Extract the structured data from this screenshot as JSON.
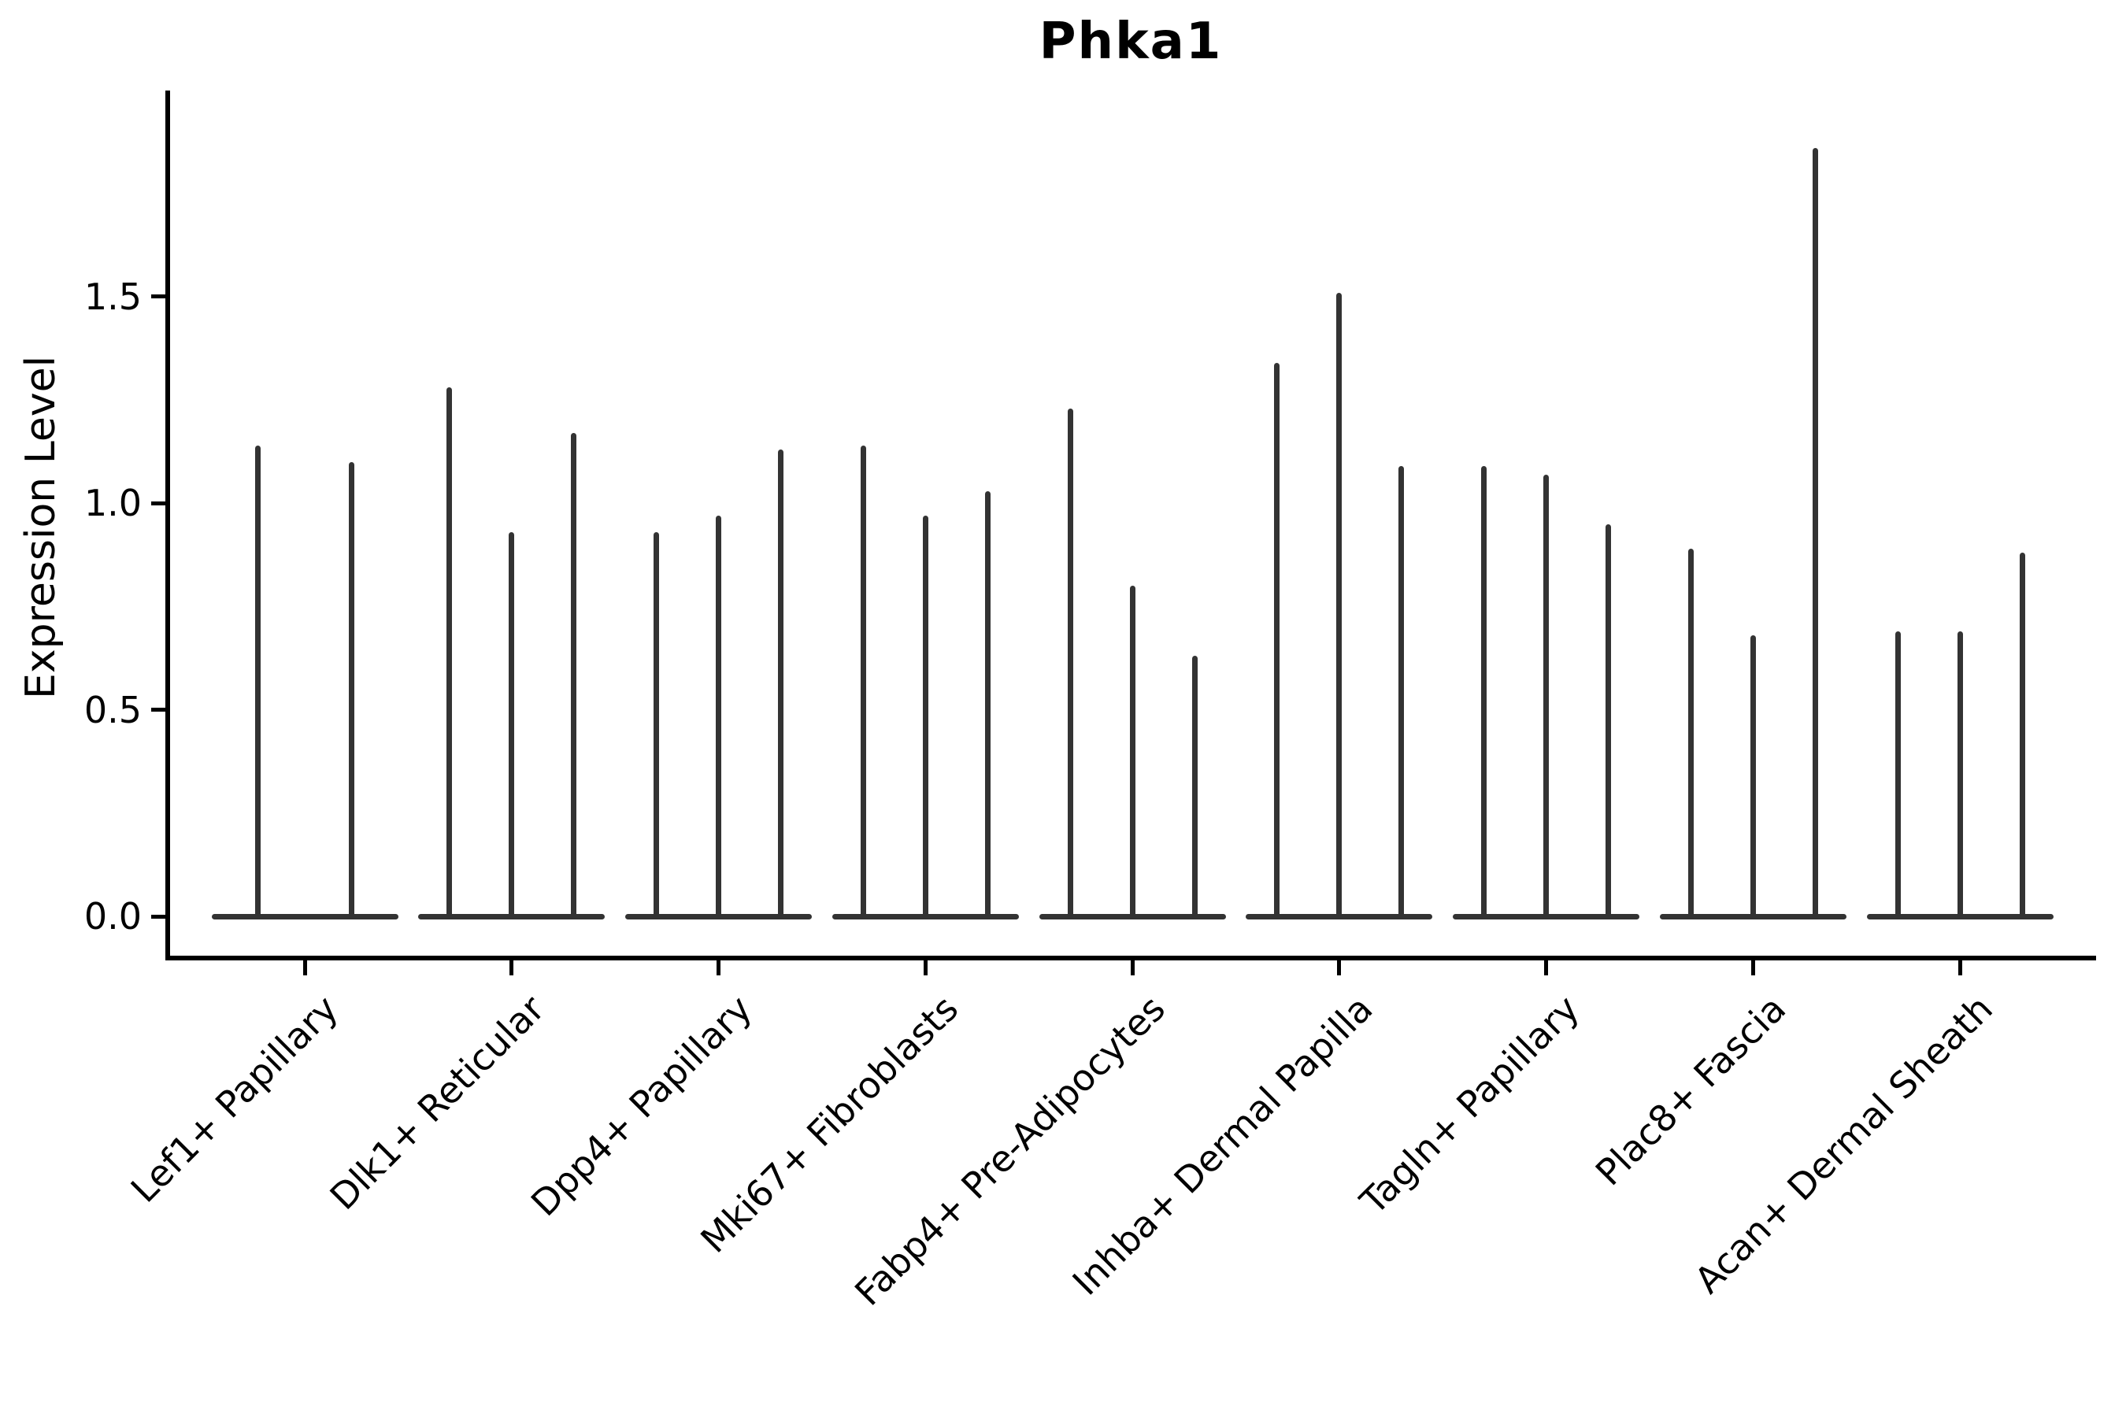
{
  "chart_data": {
    "type": "violin",
    "title": "Phka1",
    "ylabel": "Expression Level",
    "xlabel": "",
    "ylim": [
      0,
      2.0
    ],
    "yticks": {
      "values": [
        0,
        0.5,
        1.0,
        1.5
      ],
      "labels": [
        "0.0",
        "0.5",
        "1.0",
        "1.5"
      ]
    },
    "grid": false,
    "legend": "none",
    "violin_color": "#333333",
    "axis_color": "#000000",
    "violin_style": "density collapsed at 0 with one thin spike per violin reaching its maximum expression value",
    "groups": [
      {
        "label": "Lef1+ Papillary",
        "spike_values": [
          1.14,
          1.1
        ]
      },
      {
        "label": "Dlk1+ Reticular",
        "spike_values": [
          1.28,
          0.93,
          1.17
        ]
      },
      {
        "label": "Dpp4+ Papillary",
        "spike_values": [
          0.93,
          0.97,
          1.13
        ]
      },
      {
        "label": "Mki67+ Fibroblasts",
        "spike_values": [
          1.14,
          0.97,
          1.03
        ]
      },
      {
        "label": "Fabp4+ Pre-Adipocytes",
        "spike_values": [
          1.23,
          0.8,
          0.63
        ]
      },
      {
        "label": "Inhba+ Dermal Papilla",
        "spike_values": [
          1.34,
          1.51,
          1.09
        ]
      },
      {
        "label": "Tagln+ Papillary",
        "spike_values": [
          1.09,
          1.07,
          0.95
        ]
      },
      {
        "label": "Plac8+ Fascia",
        "spike_values": [
          0.89,
          0.68,
          1.86
        ]
      },
      {
        "label": "Acan+ Dermal Sheath",
        "spike_values": [
          0.69,
          0.69,
          0.88
        ]
      }
    ]
  }
}
